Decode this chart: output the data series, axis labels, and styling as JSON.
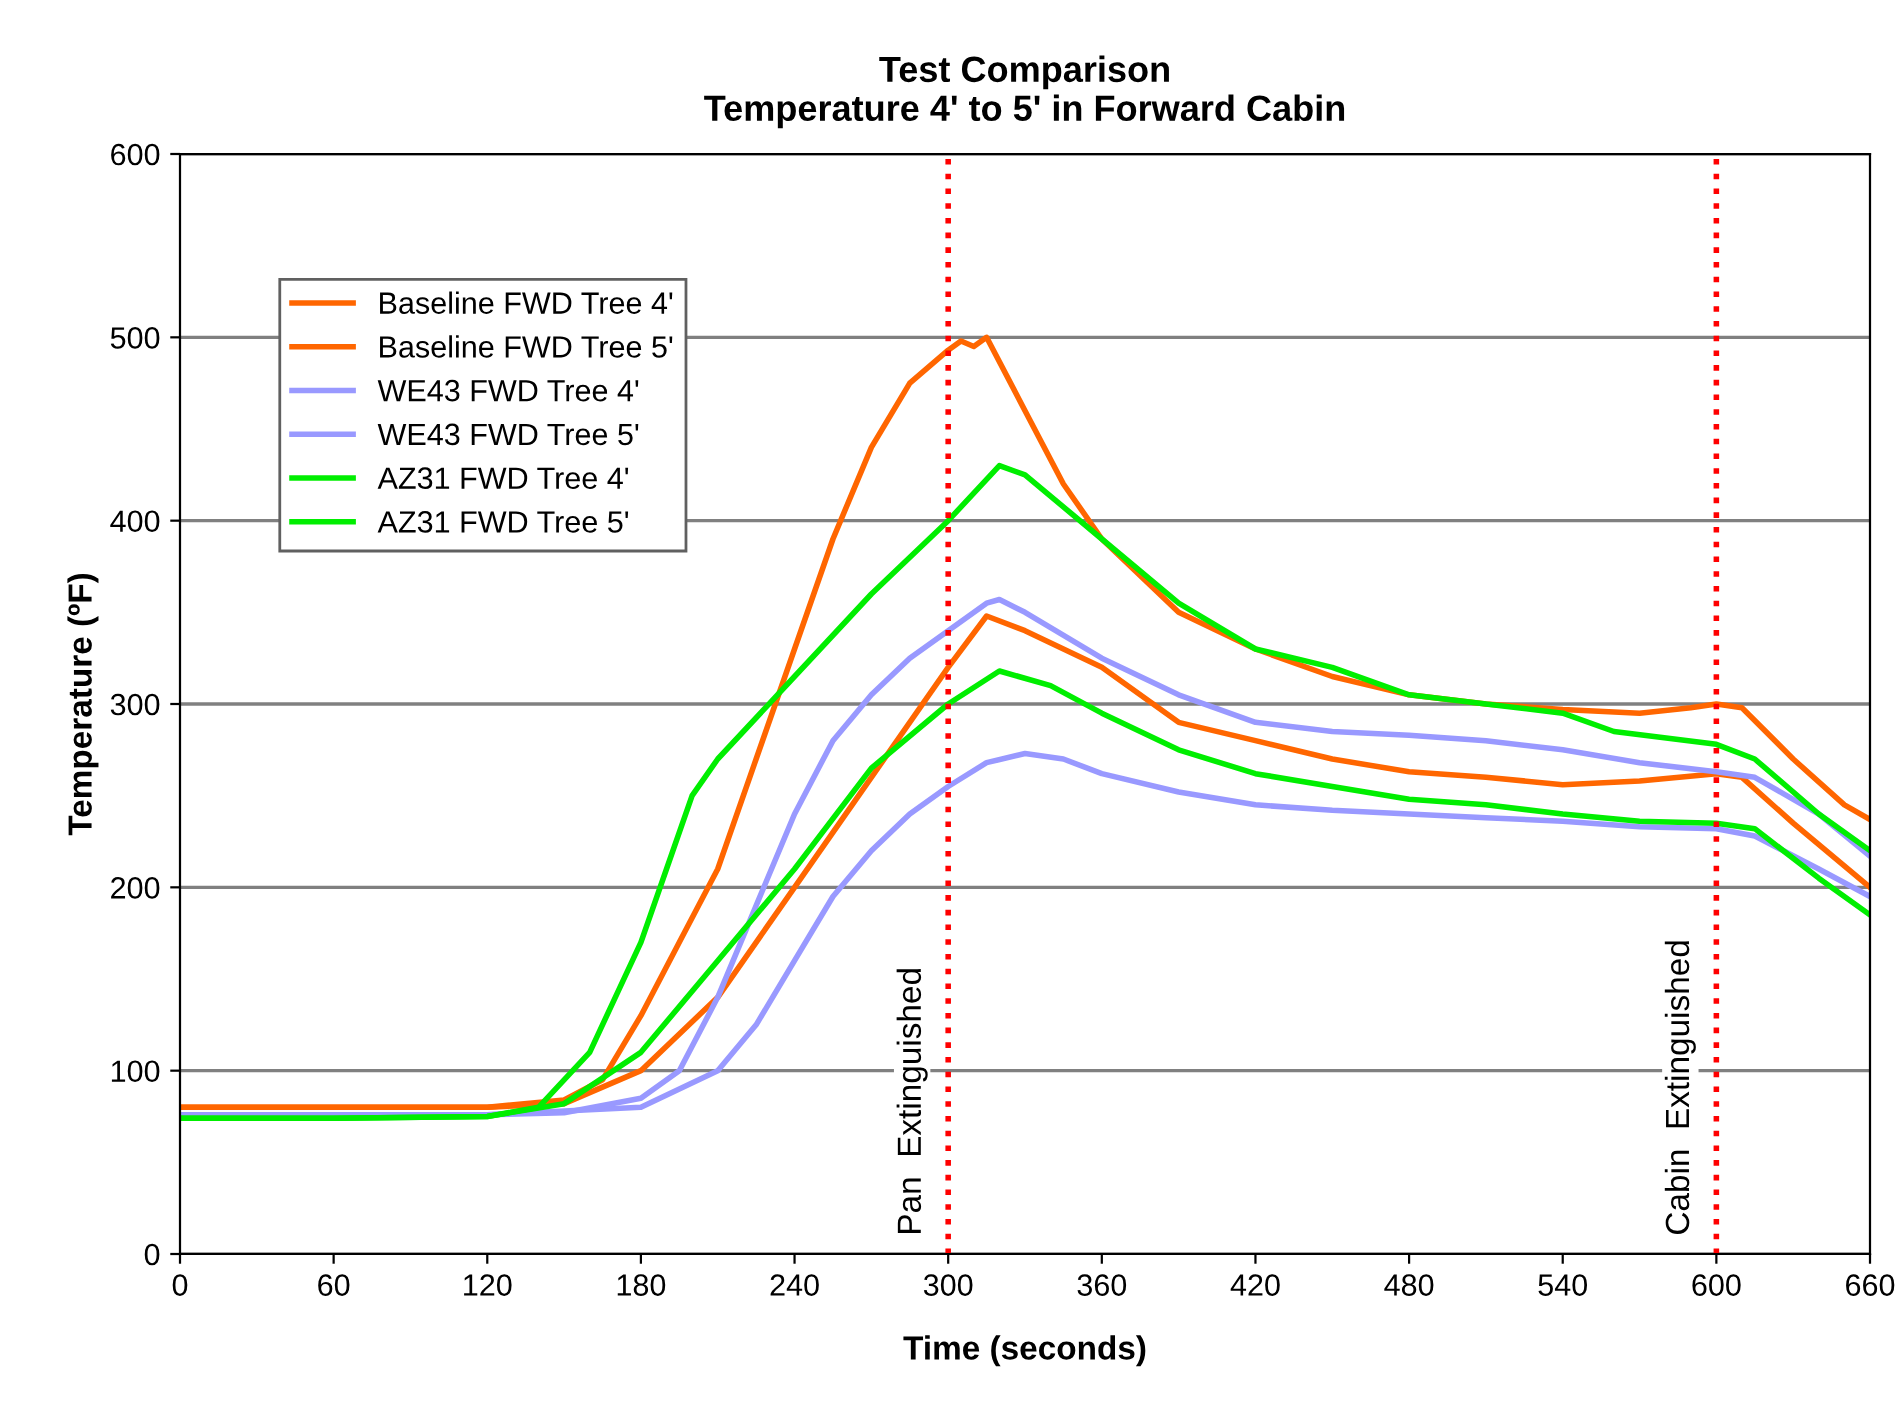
{
  "chart_data": {
    "type": "line",
    "title": "Test Comparison\nTemperature 4' to 5' in Forward Cabin",
    "xlabel": "Time (seconds)",
    "ylabel": "Temperature (ºF)",
    "xlim": [
      0,
      660
    ],
    "xticks": [
      0,
      60,
      120,
      180,
      240,
      300,
      360,
      420,
      480,
      540,
      600,
      660
    ],
    "ylim": [
      0,
      600
    ],
    "yticks": [
      0,
      100,
      200,
      300,
      400,
      500,
      600
    ],
    "grid": "y",
    "legend": "top left",
    "marker": "none",
    "line_style": "solid",
    "ref_lines": [
      {
        "axis": "x",
        "value": 300,
        "label": "Pan  Extinguished",
        "color": "#ff0000",
        "line_style": "dotted"
      },
      {
        "axis": "x",
        "value": 600,
        "label": "Cabin  Extinguished",
        "color": "#ff0000",
        "line_style": "dotted"
      }
    ],
    "series": [
      {
        "name": "Baseline FWD Tree 4'",
        "color": "#ff6600",
        "x": [
          0,
          60,
          120,
          150,
          180,
          210,
          240,
          270,
          300,
          315,
          330,
          360,
          390,
          420,
          450,
          480,
          510,
          540,
          570,
          600,
          610,
          630,
          660
        ],
        "values": [
          80,
          80,
          80,
          82,
          100,
          140,
          200,
          260,
          320,
          348,
          340,
          320,
          290,
          280,
          270,
          263,
          260,
          256,
          258,
          262,
          260,
          235,
          200
        ]
      },
      {
        "name": "Baseline FWD Tree 5'",
        "color": "#ff6600",
        "x": [
          0,
          60,
          120,
          150,
          165,
          180,
          195,
          210,
          225,
          240,
          255,
          270,
          285,
          300,
          305,
          310,
          315,
          330,
          345,
          360,
          390,
          420,
          450,
          480,
          510,
          540,
          570,
          590,
          600,
          610,
          630,
          650,
          660
        ],
        "values": [
          80,
          80,
          80,
          84,
          95,
          130,
          170,
          210,
          270,
          330,
          390,
          440,
          475,
          493,
          498,
          495,
          500,
          460,
          420,
          390,
          350,
          330,
          315,
          305,
          300,
          297,
          295,
          298,
          300,
          298,
          270,
          245,
          237
        ]
      },
      {
        "name": "WE43 FWD Tree 4'",
        "color": "#9999ff",
        "x": [
          0,
          60,
          120,
          180,
          210,
          225,
          240,
          255,
          270,
          285,
          300,
          315,
          330,
          345,
          360,
          390,
          420,
          450,
          480,
          510,
          540,
          570,
          600,
          615,
          640,
          660
        ],
        "values": [
          76,
          76,
          76,
          80,
          100,
          125,
          160,
          195,
          220,
          240,
          255,
          268,
          273,
          270,
          262,
          252,
          245,
          242,
          240,
          238,
          236,
          233,
          232,
          228,
          210,
          195
        ]
      },
      {
        "name": "WE43 FWD Tree 5'",
        "color": "#9999ff",
        "x": [
          0,
          60,
          120,
          150,
          180,
          195,
          210,
          225,
          240,
          255,
          270,
          285,
          300,
          315,
          320,
          330,
          360,
          390,
          420,
          450,
          480,
          510,
          540,
          570,
          600,
          615,
          640,
          660
        ],
        "values": [
          76,
          76,
          76,
          77,
          85,
          100,
          140,
          190,
          240,
          280,
          305,
          325,
          340,
          355,
          357,
          350,
          325,
          305,
          290,
          285,
          283,
          280,
          275,
          268,
          263,
          260,
          240,
          217
        ]
      },
      {
        "name": "AZ31 FWD Tree 4'",
        "color": "#00ee00",
        "x": [
          0,
          60,
          120,
          150,
          180,
          210,
          240,
          270,
          300,
          320,
          340,
          360,
          390,
          420,
          450,
          480,
          510,
          540,
          570,
          600,
          615,
          640,
          660
        ],
        "values": [
          74,
          74,
          75,
          82,
          110,
          160,
          210,
          265,
          300,
          318,
          310,
          295,
          275,
          262,
          255,
          248,
          245,
          240,
          236,
          235,
          232,
          205,
          185
        ]
      },
      {
        "name": "AZ31 FWD Tree 5'",
        "color": "#00ee00",
        "x": [
          0,
          60,
          120,
          140,
          160,
          180,
          190,
          200,
          210,
          240,
          270,
          300,
          320,
          330,
          360,
          390,
          420,
          450,
          480,
          510,
          540,
          560,
          600,
          615,
          640,
          660
        ],
        "values": [
          74,
          74,
          75,
          80,
          110,
          170,
          210,
          250,
          270,
          315,
          360,
          400,
          430,
          425,
          390,
          355,
          330,
          320,
          305,
          300,
          295,
          285,
          278,
          270,
          240,
          220
        ]
      }
    ]
  }
}
